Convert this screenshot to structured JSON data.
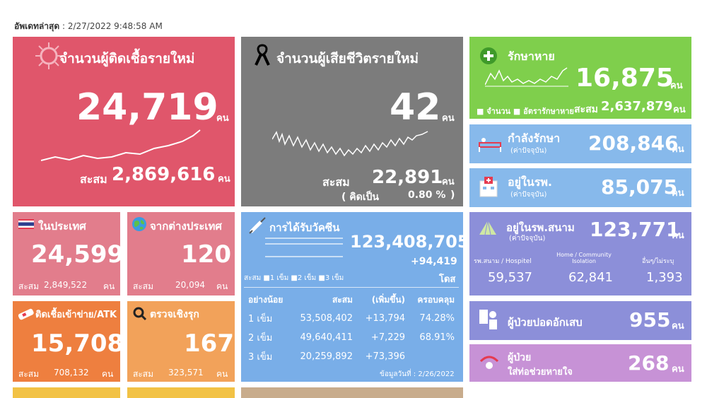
{
  "update": {
    "label": "อัพเดทล่าสุด",
    "value": ": 2/27/2022 9:48:58 AM"
  },
  "new_cases": {
    "title": "จำนวนผู้ติดเชื้อรายใหม่",
    "value": "24,719",
    "unit": "คน",
    "total_label": "สะสม",
    "total": "2,869,616",
    "total_unit": "คน"
  },
  "new_deaths": {
    "title": "จำนวนผู้เสียชีวิตรายใหม่",
    "value": "42",
    "unit": "คน",
    "total_label": "สะสม",
    "total": "22,891",
    "total_unit": "คน",
    "rate_open": "( คิดเป็น",
    "rate": "0.80 %",
    "rate_close": ")"
  },
  "recovered": {
    "title": "รักษาหาย",
    "value": "16,875",
    "unit": "คน",
    "legend1": "จำนวน",
    "legend2": "อัตรารักษาหาย",
    "total_label": "สะสม",
    "total": "2,637,879",
    "total_unit": "คน"
  },
  "treating": {
    "title": "กำลังรักษา",
    "sub": "(ค่าปัจจุบัน)",
    "value": "208,846",
    "unit": "คน"
  },
  "hospital": {
    "title": "อยู่ในรพ.",
    "sub": "(ค่าปัจจุบัน)",
    "value": "85,075",
    "unit": "คน"
  },
  "domestic": {
    "title": "ในประเทศ",
    "value": "24,599",
    "total_label": "สะสม",
    "total": "2,849,522",
    "total_unit": "คน"
  },
  "abroad": {
    "title": "จากต่างประเทศ",
    "value": "120",
    "total_label": "สะสม",
    "total": "20,094",
    "total_unit": "คน"
  },
  "prison": {
    "title": "ติดเชื้อเข้าข่าย/ATK",
    "value": "15,708",
    "total_label": "สะสม",
    "total": "708,132",
    "total_unit": "คน"
  },
  "proactive": {
    "title": "ตรวจเชิงรุก",
    "value": "167",
    "total_label": "สะสม",
    "total": "323,571",
    "total_unit": "คน"
  },
  "vaccine": {
    "title": "การได้รับวัคซีน",
    "total": "123,408,705",
    "increase": "+94,419",
    "unit": "โดส",
    "legend_label": "สะสม",
    "legend": [
      "1 เข็ม",
      "2 เข็ม",
      "3 เข็ม"
    ],
    "headers": [
      "อย่างน้อย",
      "สะสม",
      "(เพิ่มขึ้น)",
      "ครอบคลุม"
    ],
    "rows": [
      {
        "dose": "1 เข็ม",
        "total": "53,508,402",
        "inc": "+13,794",
        "cov": "74.28%"
      },
      {
        "dose": "2 เข็ม",
        "total": "49,640,411",
        "inc": "+7,229",
        "cov": "68.91%"
      },
      {
        "dose": "3 เข็ม",
        "total": "20,259,892",
        "inc": "+73,396",
        "cov": ""
      }
    ],
    "note": "ข้อมูลวันที่ : 2/26/2022"
  },
  "field_hospital": {
    "title": "อยู่ในรพ.สนาม",
    "sub": "(ค่าปัจจุบัน)",
    "value": "123,771",
    "unit": "คน",
    "cols": [
      {
        "label": "รพ.สนาม / Hospitel",
        "value": "59,537"
      },
      {
        "label": "Home / Community Isolation",
        "value": "62,841"
      },
      {
        "label": "อื่นๆ/ไม่ระบุ",
        "value": "1,393"
      }
    ]
  },
  "pneumonia": {
    "title": "ผู้ป่วยปอดอักเสบ",
    "value": "955",
    "unit": "คน"
  },
  "ventilator": {
    "title1": "ผู้ป่วย",
    "title2": "ใส่ท่อช่วยหายใจ",
    "value": "268",
    "unit": "คน"
  }
}
